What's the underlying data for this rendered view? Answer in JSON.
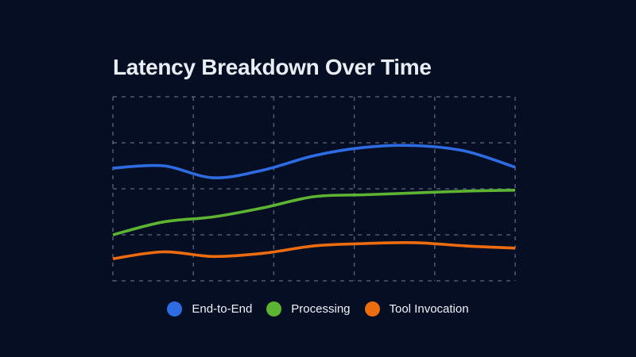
{
  "theme": {
    "background": "#060e23",
    "title_color": "#e9edf4",
    "legend_text_color": "#f0f2f7",
    "grid_color": "rgba(154,166,188,0.5)"
  },
  "chart_data": {
    "type": "line",
    "title": "Latency Breakdown Over Time",
    "xlabel": "",
    "ylabel": "",
    "x_tick_labels_shown": false,
    "y_tick_labels_shown": false,
    "x": [
      0,
      1,
      2,
      3,
      4,
      5,
      6,
      7,
      8
    ],
    "ylim": [
      0,
      4
    ],
    "grid": {
      "rows": 4,
      "cols": 5,
      "style": "dashed",
      "shown": true
    },
    "legend_position": "bottom",
    "smoothing": true,
    "series": [
      {
        "name": "End-to-End",
        "color": "#2e6ce4",
        "values": [
          2.45,
          2.5,
          2.24,
          2.41,
          2.72,
          2.9,
          2.94,
          2.82,
          2.47
        ]
      },
      {
        "name": "Processing",
        "color": "#5cb432",
        "values": [
          1.0,
          1.28,
          1.39,
          1.59,
          1.83,
          1.87,
          1.91,
          1.95,
          1.97
        ]
      },
      {
        "name": "Tool Invocation",
        "color": "#ee6c10",
        "values": [
          0.48,
          0.63,
          0.53,
          0.6,
          0.76,
          0.81,
          0.83,
          0.76,
          0.71
        ]
      }
    ]
  }
}
